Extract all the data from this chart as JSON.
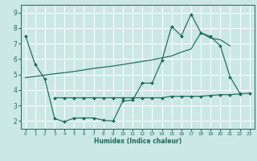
{
  "xlabel": "Humidex (Indice chaleur)",
  "background_color": "#cce8e4",
  "grid_color": "#ffffff",
  "line_color": "#1a6b5a",
  "xlim": [
    -0.5,
    23.5
  ],
  "ylim": [
    1.5,
    9.5
  ],
  "xticks": [
    0,
    1,
    2,
    3,
    4,
    5,
    6,
    7,
    8,
    9,
    10,
    11,
    12,
    13,
    14,
    15,
    16,
    17,
    18,
    19,
    20,
    21,
    22,
    23
  ],
  "yticks": [
    2,
    3,
    4,
    5,
    6,
    7,
    8,
    9
  ],
  "line1_x": [
    0,
    1,
    2,
    3,
    4,
    5,
    6,
    7,
    8,
    9,
    10,
    11,
    12,
    13,
    14,
    15,
    16,
    17,
    18,
    19,
    20,
    21,
    22
  ],
  "line1_y": [
    7.5,
    5.65,
    4.7,
    2.15,
    1.95,
    2.2,
    2.2,
    2.2,
    2.05,
    2.0,
    3.3,
    3.35,
    4.45,
    4.45,
    5.9,
    8.1,
    7.5,
    8.9,
    7.7,
    7.45,
    6.85,
    4.85,
    3.8
  ],
  "line2_x": [
    3,
    4,
    5,
    6,
    7,
    8,
    9,
    10,
    11,
    12,
    13,
    14,
    15,
    16,
    17,
    18,
    19,
    20,
    21,
    22,
    23
  ],
  "line2_y": [
    3.5,
    3.5,
    3.5,
    3.5,
    3.5,
    3.5,
    3.5,
    3.5,
    3.5,
    3.5,
    3.5,
    3.5,
    3.6,
    3.6,
    3.6,
    3.6,
    3.65,
    3.7,
    3.7,
    3.75,
    3.8
  ],
  "line3_x": [
    0,
    3,
    5,
    7,
    9,
    11,
    13,
    15,
    16,
    17,
    18,
    19,
    20,
    21
  ],
  "line3_y": [
    4.8,
    5.05,
    5.2,
    5.4,
    5.55,
    5.75,
    5.95,
    6.2,
    6.45,
    6.65,
    7.7,
    7.35,
    7.25,
    6.85
  ]
}
